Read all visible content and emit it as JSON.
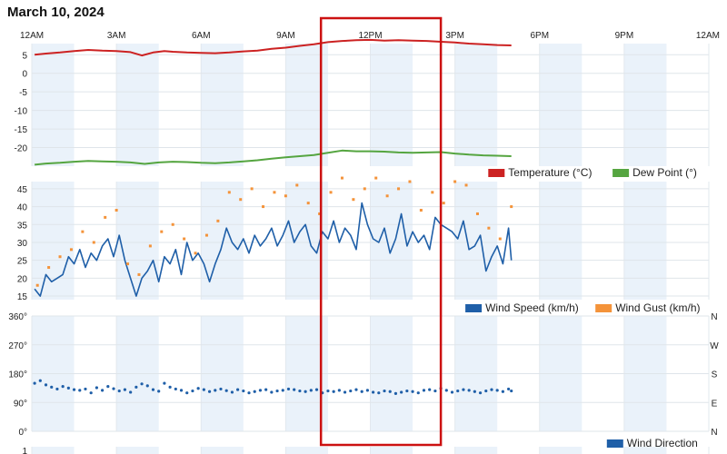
{
  "page": {
    "title": "March 10, 2024"
  },
  "time_axis": {
    "labels": [
      "12AM",
      "3AM",
      "6AM",
      "9AM",
      "12PM",
      "3PM",
      "6PM",
      "9PM",
      "12AM"
    ],
    "hours": [
      0,
      3,
      6,
      9,
      12,
      15,
      18,
      21,
      24
    ]
  },
  "highlight": {
    "start_hour": 10.25,
    "end_hour": 14.5,
    "color": "#cc1111"
  },
  "chart_data": [
    {
      "type": "line",
      "title": "",
      "xlabel": "",
      "ylabel": "",
      "xlim": [
        0,
        24
      ],
      "ylim": [
        -25,
        8
      ],
      "y_ticks": [
        5,
        0,
        -5,
        -10,
        -15,
        -20
      ],
      "grid": true,
      "legend_position": "bottom-right",
      "series": [
        {
          "name": "Temperature (°C)",
          "color": "#cc2222",
          "x": [
            0.1,
            0.5,
            1,
            1.5,
            2,
            2.5,
            3,
            3.5,
            3.9,
            4.3,
            4.7,
            5,
            5.5,
            6,
            6.5,
            7,
            7.5,
            8,
            8.5,
            9,
            9.5,
            10,
            10.5,
            11,
            11.5,
            12,
            12.5,
            13,
            13.5,
            14,
            14.5,
            15,
            15.5,
            16,
            16.5,
            17
          ],
          "y": [
            5,
            5.3,
            5.6,
            6,
            6.3,
            6.1,
            6,
            5.7,
            4.8,
            5.6,
            6,
            5.8,
            5.6,
            5.5,
            5.4,
            5.6,
            5.9,
            6.1,
            6.6,
            6.9,
            7.4,
            7.8,
            8.4,
            8.7,
            8.9,
            9,
            8.8,
            8.9,
            8.8,
            8.7,
            8.5,
            8.3,
            8,
            7.8,
            7.6,
            7.5
          ]
        },
        {
          "name": "Dew Point (°)",
          "color": "#55a540",
          "x": [
            0.1,
            0.5,
            1,
            1.5,
            2,
            2.5,
            3,
            3.5,
            4,
            4.5,
            5,
            5.5,
            6,
            6.5,
            7,
            7.5,
            8,
            8.5,
            9,
            9.5,
            10,
            10.5,
            11,
            11.5,
            12,
            12.5,
            13,
            13.5,
            14,
            14.5,
            15,
            15.5,
            16,
            16.5,
            17
          ],
          "y": [
            -24.6,
            -24.3,
            -24.1,
            -23.8,
            -23.6,
            -23.7,
            -23.8,
            -24,
            -24.4,
            -24,
            -23.8,
            -23.9,
            -24.1,
            -24.2,
            -24,
            -23.7,
            -23.4,
            -23,
            -22.6,
            -22.3,
            -22,
            -21.4,
            -20.8,
            -21,
            -21,
            -21.1,
            -21.3,
            -21.4,
            -21.3,
            -21.2,
            -21.6,
            -21.9,
            -22.1,
            -22.2,
            -22.3
          ]
        }
      ]
    },
    {
      "type": "line",
      "title": "",
      "xlabel": "",
      "ylabel": "",
      "xlim": [
        0,
        24
      ],
      "ylim": [
        14,
        47
      ],
      "y_ticks": [
        15,
        20,
        25,
        30,
        35,
        40,
        45
      ],
      "grid": true,
      "legend_position": "bottom-right",
      "series": [
        {
          "name": "Wind Speed (km/h)",
          "color": "#1f5fa8",
          "x": [
            0.1,
            0.3,
            0.5,
            0.7,
            0.9,
            1.1,
            1.3,
            1.5,
            1.7,
            1.9,
            2.1,
            2.3,
            2.5,
            2.7,
            2.9,
            3.1,
            3.3,
            3.5,
            3.7,
            3.9,
            4.1,
            4.3,
            4.5,
            4.7,
            4.9,
            5.1,
            5.3,
            5.5,
            5.7,
            5.9,
            6.1,
            6.3,
            6.5,
            6.7,
            6.9,
            7.1,
            7.3,
            7.5,
            7.7,
            7.9,
            8.1,
            8.3,
            8.5,
            8.7,
            8.9,
            9.1,
            9.3,
            9.5,
            9.7,
            9.9,
            10.1,
            10.3,
            10.5,
            10.7,
            10.9,
            11.1,
            11.3,
            11.5,
            11.7,
            11.9,
            12.1,
            12.3,
            12.5,
            12.7,
            12.9,
            13.1,
            13.3,
            13.5,
            13.7,
            13.9,
            14.1,
            14.3,
            14.5,
            14.7,
            14.9,
            15.1,
            15.3,
            15.5,
            15.7,
            15.9,
            16.1,
            16.3,
            16.5,
            16.7,
            16.9,
            17
          ],
          "y": [
            17,
            15,
            21,
            19,
            20,
            21,
            26,
            24,
            28,
            23,
            27,
            25,
            29,
            31,
            26,
            32,
            25,
            20,
            15,
            20,
            22,
            25,
            19,
            26,
            24,
            28,
            21,
            30,
            25,
            27,
            24,
            19,
            24,
            28,
            34,
            30,
            28,
            31,
            27,
            32,
            29,
            31,
            34,
            29,
            32,
            36,
            30,
            33,
            35,
            29,
            27,
            33,
            31,
            36,
            30,
            34,
            32,
            28,
            41,
            35,
            31,
            30,
            34,
            27,
            31,
            38,
            29,
            33,
            30,
            32,
            28,
            37,
            35,
            34,
            33,
            31,
            36,
            28,
            29,
            32,
            22,
            26,
            29,
            24,
            34,
            25
          ]
        },
        {
          "name": "Wind Gust (km/h)",
          "color": "#f4933a",
          "x": [
            0.2,
            0.6,
            1,
            1.4,
            1.8,
            2.2,
            2.6,
            3,
            3.4,
            3.8,
            4.2,
            4.6,
            5,
            5.4,
            5.8,
            6.2,
            6.6,
            7,
            7.4,
            7.8,
            8.2,
            8.6,
            9,
            9.4,
            9.8,
            10.2,
            10.6,
            11,
            11.4,
            11.8,
            12.2,
            12.6,
            13,
            13.4,
            13.8,
            14.2,
            14.6,
            15,
            15.4,
            15.8,
            16.2,
            16.6,
            17
          ],
          "y": [
            18,
            23,
            26,
            28,
            33,
            30,
            37,
            39,
            24,
            21,
            29,
            33,
            35,
            31,
            27,
            32,
            36,
            44,
            42,
            45,
            40,
            44,
            43,
            46,
            41,
            38,
            44,
            48,
            42,
            45,
            48,
            43,
            45,
            47,
            39,
            44,
            41,
            47,
            46,
            38,
            34,
            31,
            40
          ]
        }
      ]
    },
    {
      "type": "scatter",
      "title": "",
      "xlabel": "",
      "ylabel": "",
      "xlim": [
        0,
        24
      ],
      "ylim": [
        0,
        360
      ],
      "y_ticks": [
        0,
        90,
        180,
        270,
        360
      ],
      "y_tick_labels": [
        "0°",
        "90°",
        "180°",
        "270°",
        "360°"
      ],
      "right_tick_labels": [
        "N",
        "E",
        "S",
        "W",
        "N"
      ],
      "grid": true,
      "legend_position": "bottom-right",
      "series": [
        {
          "name": "Wind Direction",
          "color": "#1f5fa8",
          "x": [
            0.1,
            0.3,
            0.5,
            0.7,
            0.9,
            1.1,
            1.3,
            1.5,
            1.7,
            1.9,
            2.1,
            2.3,
            2.5,
            2.7,
            2.9,
            3.1,
            3.3,
            3.5,
            3.7,
            3.9,
            4.1,
            4.3,
            4.5,
            4.7,
            4.9,
            5.1,
            5.3,
            5.5,
            5.7,
            5.9,
            6.1,
            6.3,
            6.5,
            6.7,
            6.9,
            7.1,
            7.3,
            7.5,
            7.7,
            7.9,
            8.1,
            8.3,
            8.5,
            8.7,
            8.9,
            9.1,
            9.3,
            9.5,
            9.7,
            9.9,
            10.1,
            10.3,
            10.5,
            10.7,
            10.9,
            11.1,
            11.3,
            11.5,
            11.7,
            11.9,
            12.1,
            12.3,
            12.5,
            12.7,
            12.9,
            13.1,
            13.3,
            13.5,
            13.7,
            13.9,
            14.1,
            14.3,
            14.5,
            14.7,
            14.9,
            15.1,
            15.3,
            15.5,
            15.7,
            15.9,
            16.1,
            16.3,
            16.5,
            16.7,
            16.9,
            17
          ],
          "y": [
            150,
            158,
            145,
            138,
            132,
            140,
            135,
            130,
            128,
            132,
            120,
            136,
            128,
            140,
            133,
            126,
            130,
            122,
            138,
            148,
            142,
            130,
            125,
            150,
            138,
            132,
            128,
            120,
            126,
            134,
            130,
            124,
            128,
            132,
            127,
            122,
            130,
            126,
            120,
            124,
            128,
            130,
            122,
            126,
            128,
            132,
            130,
            126,
            124,
            128,
            130,
            120,
            126,
            124,
            128,
            122,
            126,
            130,
            124,
            128,
            122,
            120,
            126,
            124,
            118,
            122,
            126,
            124,
            120,
            128,
            130,
            126,
            134,
            128,
            122,
            126,
            130,
            128,
            124,
            120,
            126,
            130,
            128,
            124,
            132,
            126
          ]
        }
      ]
    },
    {
      "type": "line",
      "title": "",
      "xlabel": "",
      "ylabel": "",
      "xlim": [
        0,
        24
      ],
      "y_ticks": [
        1
      ],
      "grid": true,
      "series": []
    }
  ]
}
